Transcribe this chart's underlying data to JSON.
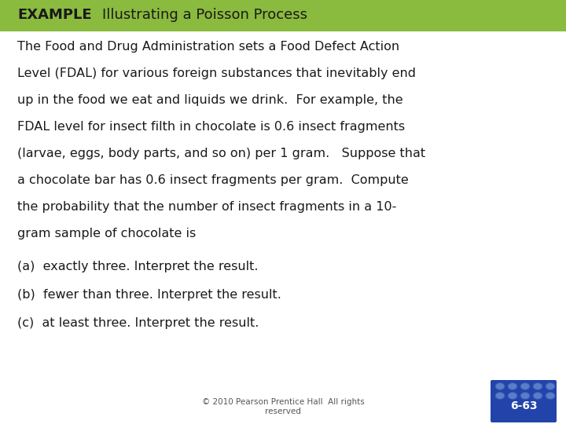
{
  "title_label": "EXAMPLE",
  "title_text": "Illustrating a Poisson Process",
  "header_bg_color": "#8aba3e",
  "header_text_color": "#1a1a1a",
  "body_bg_color": "#ffffff",
  "body_text_color": "#1a1a1a",
  "main_lines": [
    "The Food and Drug Administration sets a Food Defect Action",
    "Level (FDAL) for various foreign substances that inevitably end",
    "up in the food we eat and liquids we drink.  For example, the",
    "FDAL level for insect filth in chocolate is 0.6 insect fragments",
    "(larvae, eggs, body parts, and so on) per 1 gram.   Suppose that",
    "a chocolate bar has 0.6 insect fragments per gram.  Compute",
    "the probability that the number of insect fragments in a 10-",
    "gram sample of chocolate is"
  ],
  "item_a": "(a)  exactly three. Interpret the result.",
  "item_b": "(b)  fewer than three. Interpret the result.",
  "item_c": "(c)  at least three. Interpret the result.",
  "footer_text": "© 2010 Pearson Prentice Hall  All rights\nreserved",
  "page_num": "6-63",
  "font_size_header": 13,
  "font_size_body": 11.5,
  "font_size_footer": 7.5
}
